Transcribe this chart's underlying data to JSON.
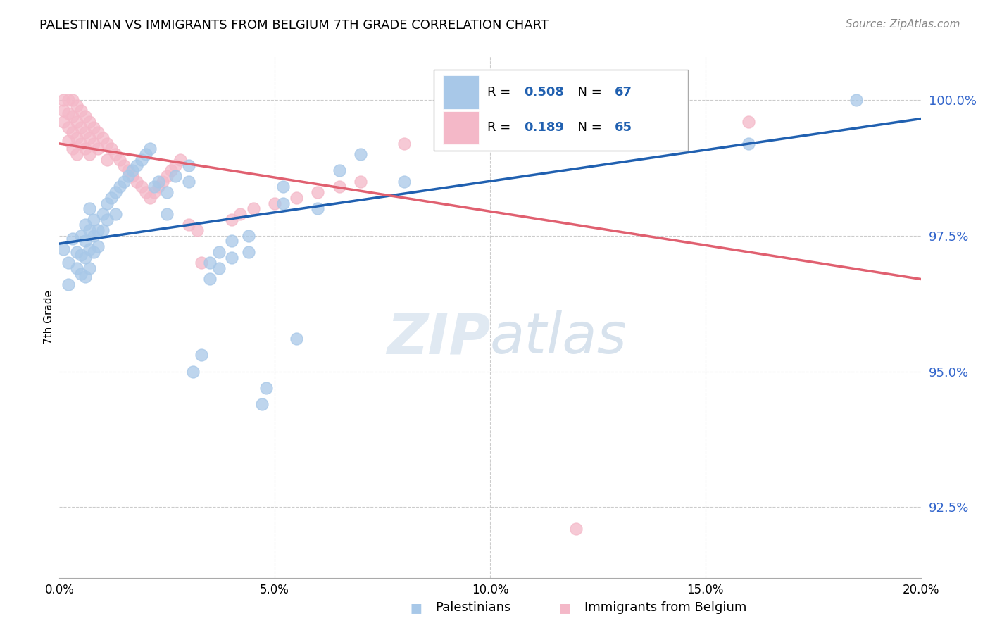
{
  "title": "PALESTINIAN VS IMMIGRANTS FROM BELGIUM 7TH GRADE CORRELATION CHART",
  "source": "Source: ZipAtlas.com",
  "ylabel": "7th Grade",
  "ytick_labels": [
    "92.5%",
    "95.0%",
    "97.5%",
    "100.0%"
  ],
  "ytick_values": [
    0.925,
    0.95,
    0.975,
    1.0
  ],
  "xmin": 0.0,
  "xmax": 0.2,
  "ymin": 0.912,
  "ymax": 1.008,
  "watermark_zip": "ZIP",
  "watermark_atlas": "atlas",
  "legend_blue_label": "Palestinians",
  "legend_pink_label": "Immigrants from Belgium",
  "blue_R": "0.508",
  "blue_N": "67",
  "pink_R": "0.189",
  "pink_N": "65",
  "blue_color": "#a8c8e8",
  "pink_color": "#f4b8c8",
  "blue_line_color": "#2060b0",
  "pink_line_color": "#e06070",
  "blue_points": [
    [
      0.001,
      0.9725
    ],
    [
      0.002,
      0.97
    ],
    [
      0.002,
      0.966
    ],
    [
      0.003,
      0.9745
    ],
    [
      0.004,
      0.972
    ],
    [
      0.004,
      0.969
    ],
    [
      0.005,
      0.975
    ],
    [
      0.005,
      0.9715
    ],
    [
      0.005,
      0.968
    ],
    [
      0.006,
      0.977
    ],
    [
      0.006,
      0.974
    ],
    [
      0.006,
      0.971
    ],
    [
      0.006,
      0.9675
    ],
    [
      0.007,
      0.98
    ],
    [
      0.007,
      0.976
    ],
    [
      0.007,
      0.9725
    ],
    [
      0.007,
      0.969
    ],
    [
      0.008,
      0.978
    ],
    [
      0.008,
      0.975
    ],
    [
      0.008,
      0.972
    ],
    [
      0.009,
      0.976
    ],
    [
      0.009,
      0.973
    ],
    [
      0.01,
      0.979
    ],
    [
      0.01,
      0.976
    ],
    [
      0.011,
      0.981
    ],
    [
      0.011,
      0.978
    ],
    [
      0.012,
      0.982
    ],
    [
      0.013,
      0.983
    ],
    [
      0.013,
      0.979
    ],
    [
      0.014,
      0.984
    ],
    [
      0.015,
      0.985
    ],
    [
      0.016,
      0.986
    ],
    [
      0.017,
      0.987
    ],
    [
      0.018,
      0.988
    ],
    [
      0.019,
      0.989
    ],
    [
      0.02,
      0.99
    ],
    [
      0.021,
      0.991
    ],
    [
      0.022,
      0.984
    ],
    [
      0.023,
      0.985
    ],
    [
      0.025,
      0.979
    ],
    [
      0.025,
      0.983
    ],
    [
      0.027,
      0.986
    ],
    [
      0.03,
      0.988
    ],
    [
      0.03,
      0.985
    ],
    [
      0.031,
      0.95
    ],
    [
      0.033,
      0.953
    ],
    [
      0.035,
      0.97
    ],
    [
      0.035,
      0.967
    ],
    [
      0.037,
      0.972
    ],
    [
      0.037,
      0.969
    ],
    [
      0.04,
      0.974
    ],
    [
      0.04,
      0.971
    ],
    [
      0.044,
      0.975
    ],
    [
      0.044,
      0.972
    ],
    [
      0.047,
      0.944
    ],
    [
      0.048,
      0.947
    ],
    [
      0.052,
      0.984
    ],
    [
      0.052,
      0.981
    ],
    [
      0.055,
      0.956
    ],
    [
      0.06,
      0.98
    ],
    [
      0.065,
      0.987
    ],
    [
      0.07,
      0.99
    ],
    [
      0.08,
      0.985
    ],
    [
      0.13,
      0.999
    ],
    [
      0.142,
      0.997
    ],
    [
      0.16,
      0.992
    ],
    [
      0.185,
      1.0
    ]
  ],
  "pink_points": [
    [
      0.001,
      1.0
    ],
    [
      0.001,
      0.998
    ],
    [
      0.001,
      0.996
    ],
    [
      0.002,
      1.0
    ],
    [
      0.002,
      0.9975
    ],
    [
      0.002,
      0.995
    ],
    [
      0.002,
      0.9925
    ],
    [
      0.003,
      1.0
    ],
    [
      0.003,
      0.997
    ],
    [
      0.003,
      0.994
    ],
    [
      0.003,
      0.991
    ],
    [
      0.004,
      0.999
    ],
    [
      0.004,
      0.996
    ],
    [
      0.004,
      0.993
    ],
    [
      0.004,
      0.99
    ],
    [
      0.005,
      0.998
    ],
    [
      0.005,
      0.995
    ],
    [
      0.005,
      0.992
    ],
    [
      0.006,
      0.997
    ],
    [
      0.006,
      0.994
    ],
    [
      0.006,
      0.991
    ],
    [
      0.007,
      0.996
    ],
    [
      0.007,
      0.993
    ],
    [
      0.007,
      0.99
    ],
    [
      0.008,
      0.995
    ],
    [
      0.008,
      0.992
    ],
    [
      0.009,
      0.994
    ],
    [
      0.009,
      0.991
    ],
    [
      0.01,
      0.993
    ],
    [
      0.011,
      0.992
    ],
    [
      0.011,
      0.989
    ],
    [
      0.012,
      0.991
    ],
    [
      0.013,
      0.99
    ],
    [
      0.014,
      0.989
    ],
    [
      0.015,
      0.988
    ],
    [
      0.016,
      0.987
    ],
    [
      0.017,
      0.986
    ],
    [
      0.018,
      0.985
    ],
    [
      0.019,
      0.984
    ],
    [
      0.02,
      0.983
    ],
    [
      0.021,
      0.982
    ],
    [
      0.022,
      0.983
    ],
    [
      0.023,
      0.984
    ],
    [
      0.024,
      0.985
    ],
    [
      0.025,
      0.986
    ],
    [
      0.026,
      0.987
    ],
    [
      0.027,
      0.988
    ],
    [
      0.028,
      0.989
    ],
    [
      0.03,
      0.977
    ],
    [
      0.032,
      0.976
    ],
    [
      0.033,
      0.97
    ],
    [
      0.04,
      0.978
    ],
    [
      0.042,
      0.979
    ],
    [
      0.045,
      0.98
    ],
    [
      0.05,
      0.981
    ],
    [
      0.055,
      0.982
    ],
    [
      0.06,
      0.983
    ],
    [
      0.065,
      0.984
    ],
    [
      0.07,
      0.985
    ],
    [
      0.08,
      0.992
    ],
    [
      0.09,
      0.993
    ],
    [
      0.1,
      0.994
    ],
    [
      0.12,
      0.921
    ],
    [
      0.14,
      0.995
    ],
    [
      0.16,
      0.996
    ]
  ]
}
